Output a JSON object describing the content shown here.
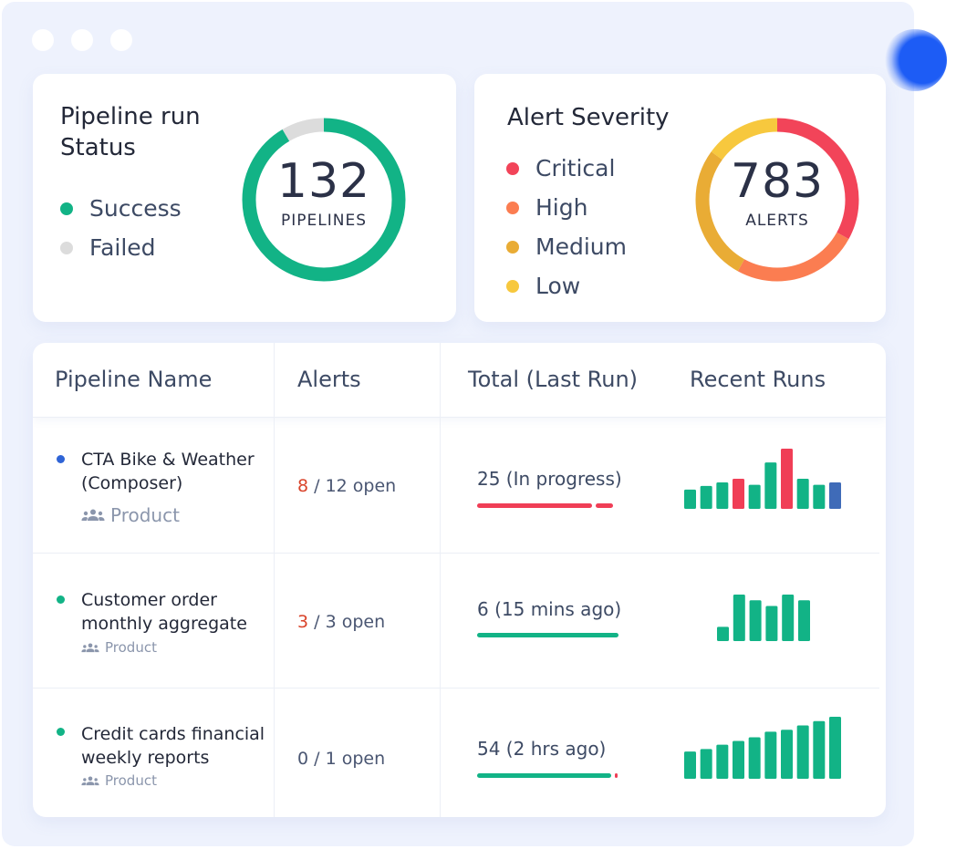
{
  "colors": {
    "green": "#12b386",
    "gray": "#dcdcdc",
    "critical": "#f24459",
    "high": "#fb7d51",
    "medium": "#e9ac35",
    "low": "#f7c83e",
    "red_run": "#f03e56",
    "blue_run": "#3f6bb8",
    "blue_dot": "#2f64d6"
  },
  "pipeline_status": {
    "title_line1": "Pipeline run",
    "title_line2": "Status",
    "legend": [
      {
        "label": "Success",
        "color": "#12b386"
      },
      {
        "label": "Failed",
        "color": "#dcdcdc"
      }
    ],
    "total": "132",
    "unit": "PIPELINES",
    "segments": [
      {
        "label": "Success",
        "fraction": 0.915,
        "color": "#12b386"
      },
      {
        "label": "Failed",
        "fraction": 0.085,
        "color": "#dcdcdc"
      }
    ]
  },
  "alert_severity": {
    "title": "Alert Severity",
    "legend": [
      {
        "label": "Critical",
        "color": "#f24459"
      },
      {
        "label": "High",
        "color": "#fb7d51"
      },
      {
        "label": "Medium",
        "color": "#e9ac35"
      },
      {
        "label": "Low",
        "color": "#f7c83e"
      }
    ],
    "total": "783",
    "unit": "ALERTS",
    "segments": [
      {
        "label": "Critical",
        "fraction": 0.33,
        "color": "#f24459"
      },
      {
        "label": "High",
        "fraction": 0.25,
        "color": "#fb7d51"
      },
      {
        "label": "Medium",
        "fraction": 0.27,
        "color": "#e9ac35"
      },
      {
        "label": "Low",
        "fraction": 0.15,
        "color": "#f7c83e"
      }
    ]
  },
  "table": {
    "headers": [
      "Pipeline Name",
      "Alerts",
      "Total (Last Run)",
      "Recent Runs"
    ],
    "rows": [
      {
        "name_line1": "CTA Bike & Weather",
        "name_line2": "(Composer)",
        "team": "Product",
        "dot_color": "#2f64d6",
        "alerts_open": "8",
        "alerts_rest": " / 12 open",
        "total": "25 (In progress)",
        "progress": [
          {
            "fraction": 0.85,
            "color": "#f03e56"
          },
          {
            "fraction": 0.13,
            "color": "#f03e56"
          }
        ],
        "recent_runs": [
          {
            "value": 0.32,
            "color": "#12b386"
          },
          {
            "value": 0.38,
            "color": "#12b386"
          },
          {
            "value": 0.44,
            "color": "#12b386"
          },
          {
            "value": 0.5,
            "color": "#f03e56"
          },
          {
            "value": 0.4,
            "color": "#12b386"
          },
          {
            "value": 0.77,
            "color": "#12b386"
          },
          {
            "value": 1.0,
            "color": "#f03e56"
          },
          {
            "value": 0.5,
            "color": "#12b386"
          },
          {
            "value": 0.4,
            "color": "#12b386"
          },
          {
            "value": 0.44,
            "color": "#3f6bb8"
          }
        ]
      },
      {
        "name_line1": "Customer order",
        "name_line2": "monthly aggregate",
        "team": "Product",
        "dot_color": "#12b386",
        "alerts_open": "3",
        "alerts_rest": " / 3 open",
        "total": "6 (15 mins ago)",
        "progress": [
          {
            "fraction": 1.0,
            "color": "#12b386"
          }
        ],
        "recent_runs": [
          {
            "value": 0.3,
            "color": "#12b386"
          },
          {
            "value": 0.98,
            "color": "#12b386"
          },
          {
            "value": 0.86,
            "color": "#12b386"
          },
          {
            "value": 0.74,
            "color": "#12b386"
          },
          {
            "value": 0.98,
            "color": "#12b386"
          },
          {
            "value": 0.86,
            "color": "#12b386"
          }
        ]
      },
      {
        "name_line1": "Credit cards financial",
        "name_line2": "weekly reports",
        "team": "Product",
        "dot_color": "#12b386",
        "alerts_open": "0",
        "alerts_rest": " / 1 open",
        "total": "54 (2 hrs ago)",
        "progress": [
          {
            "fraction": 0.965,
            "color": "#12b386"
          },
          {
            "fraction": 0.02,
            "color": "#f03e56"
          }
        ],
        "recent_runs": [
          {
            "value": 0.44,
            "color": "#12b386"
          },
          {
            "value": 0.48,
            "color": "#12b386"
          },
          {
            "value": 0.55,
            "color": "#12b386"
          },
          {
            "value": 0.61,
            "color": "#12b386"
          },
          {
            "value": 0.67,
            "color": "#12b386"
          },
          {
            "value": 0.76,
            "color": "#12b386"
          },
          {
            "value": 0.79,
            "color": "#12b386"
          },
          {
            "value": 0.86,
            "color": "#12b386"
          },
          {
            "value": 0.93,
            "color": "#12b386"
          },
          {
            "value": 1.0,
            "color": "#12b386"
          }
        ]
      }
    ]
  }
}
